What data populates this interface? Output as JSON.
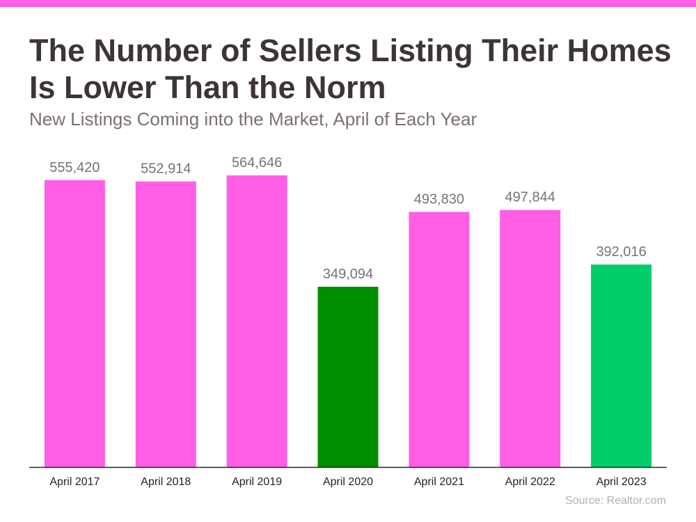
{
  "theme": {
    "accent_bar": "#ff5ee5",
    "bar_default": "#ff5ee5",
    "bar_highlight_dark": "#008f00",
    "bar_highlight_light": "#00cc6a",
    "text_dark": "#3d3436",
    "text_muted": "#7a6f79",
    "axis_line": "#222222"
  },
  "title_lines": [
    "The Number of Sellers Listing Their Homes",
    "Is Lower Than the Norm"
  ],
  "subtitle": "New Listings Coming into the Market, April of Each Year",
  "source": "Source: Realtor.com",
  "chart_data": {
    "type": "bar",
    "title": "The Number of Sellers Listing Their Homes Is Lower Than the Norm",
    "subtitle": "New Listings Coming into the Market, April of Each Year",
    "xlabel": "",
    "ylabel": "",
    "categories": [
      "April 2017",
      "April 2018",
      "April 2019",
      "April 2020",
      "April 2021",
      "April 2022",
      "April 2023"
    ],
    "values": [
      555420,
      552914,
      564646,
      349094,
      493830,
      497844,
      392016
    ],
    "value_labels": [
      "555,420",
      "552,914",
      "564,646",
      "349,094",
      "493,830",
      "497,844",
      "392,016"
    ],
    "bar_colors": [
      "#ff5ee5",
      "#ff5ee5",
      "#ff5ee5",
      "#008f00",
      "#ff5ee5",
      "#ff5ee5",
      "#00cc6a"
    ],
    "ylim": [
      0,
      564646
    ],
    "grid": false,
    "legend": "none"
  }
}
